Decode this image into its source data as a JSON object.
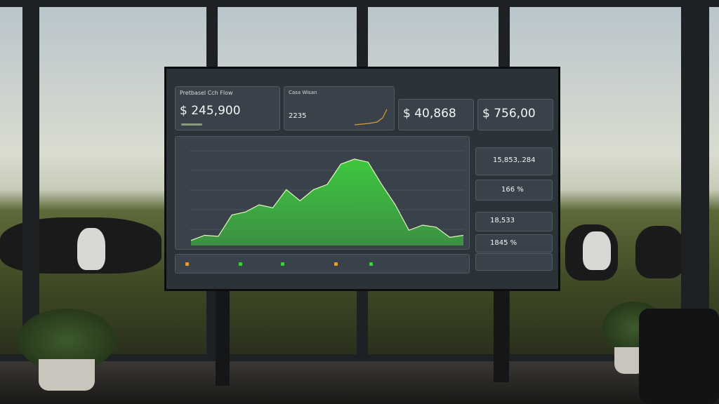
{
  "header": {
    "title": "Pretbasel Cch Flow"
  },
  "cards": [
    {
      "title": "Pretbasel Cch Flow",
      "value": "$ 245,900"
    },
    {
      "title": "Casa Wisan",
      "value": "2235"
    },
    {
      "value": "$ 40,868"
    },
    {
      "value": "$ 756,00"
    }
  ],
  "chart_data": {
    "type": "area",
    "values": [
      5,
      10,
      9,
      30,
      33,
      40,
      37,
      55,
      44,
      55,
      60,
      80,
      85,
      82,
      60,
      40,
      15,
      20,
      18,
      8,
      10
    ],
    "ylim": [
      0,
      100
    ],
    "color": "#3ecf3e"
  },
  "side": [
    {
      "value": "15,853,.284"
    },
    {
      "value": "166 %"
    },
    {
      "value": "18,533"
    },
    {
      "value": "1845 %"
    }
  ]
}
